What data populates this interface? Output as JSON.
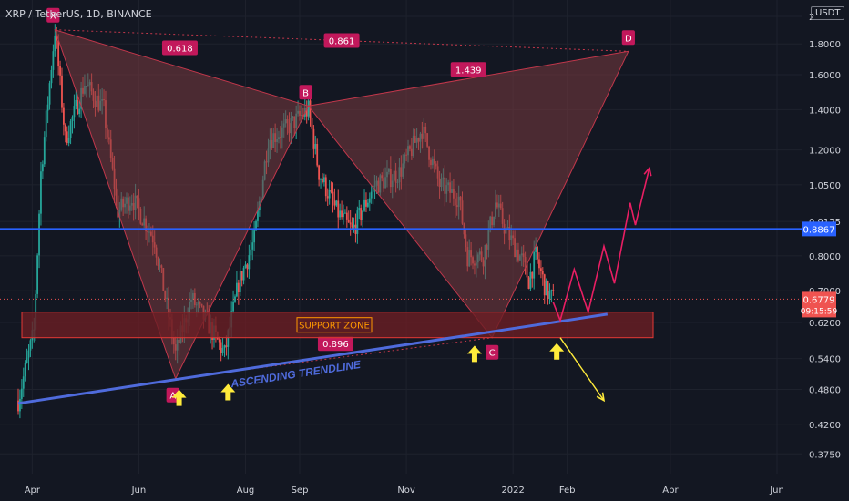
{
  "header": {
    "title": "XRP / TetherUS, 1D, BINANCE",
    "currency": "USDT"
  },
  "colors": {
    "background": "#131722",
    "up": "#26a69a",
    "down": "#ef5350",
    "pattern_fill": "#7a3a3f",
    "pattern_line": "#c2374b",
    "label_bg": "#c2185b",
    "horizontal_line": "#2962ff",
    "trendline": "#4f6bdc",
    "support_fill": "#6b1e24",
    "support_border": "#e53935",
    "support_text": "#ff9800",
    "arrow": "#ffeb3b",
    "projection_up": "#e91e63",
    "projection_down": "#ffeb3b",
    "axis_text": "#d1d4dc"
  },
  "chart_data": {
    "type": "candlestick",
    "title": "XRP / TetherUS, 1D, BINANCE",
    "y_scale": "log",
    "ylim": [
      0.36,
      2.0
    ],
    "y_ticks": [
      "2",
      "1.8000",
      "1.6000",
      "1.4000",
      "1.2000",
      "1.0500",
      "0.9125",
      "0.8000",
      "0.7000",
      "0.6200",
      "0.5400",
      "0.4800",
      "0.4200",
      "0.3750"
    ],
    "x_ticks": [
      "Apr",
      "Jun",
      "Aug",
      "Sep",
      "Nov",
      "2022",
      "Feb",
      "Apr",
      "Jun"
    ],
    "price_key_points": [
      {
        "date": "2021-03-24",
        "price": 0.46
      },
      {
        "date": "2021-04-02",
        "price": 0.6
      },
      {
        "date": "2021-04-06",
        "price": 1.1
      },
      {
        "date": "2021-04-14",
        "price": 1.9
      },
      {
        "date": "2021-04-20",
        "price": 1.25
      },
      {
        "date": "2021-05-01",
        "price": 1.55
      },
      {
        "date": "2021-05-12",
        "price": 1.4
      },
      {
        "date": "2021-05-20",
        "price": 0.95
      },
      {
        "date": "2021-05-28",
        "price": 1.0
      },
      {
        "date": "2021-06-10",
        "price": 0.85
      },
      {
        "date": "2021-06-22",
        "price": 0.55
      },
      {
        "date": "2021-07-01",
        "price": 0.68
      },
      {
        "date": "2021-07-10",
        "price": 0.62
      },
      {
        "date": "2021-07-20",
        "price": 0.55
      },
      {
        "date": "2021-07-28",
        "price": 0.72
      },
      {
        "date": "2021-08-06",
        "price": 0.85
      },
      {
        "date": "2021-08-14",
        "price": 1.25
      },
      {
        "date": "2021-08-24",
        "price": 1.3
      },
      {
        "date": "2021-09-06",
        "price": 1.4
      },
      {
        "date": "2021-09-12",
        "price": 1.1
      },
      {
        "date": "2021-09-22",
        "price": 0.95
      },
      {
        "date": "2021-10-01",
        "price": 0.88
      },
      {
        "date": "2021-10-14",
        "price": 1.05
      },
      {
        "date": "2021-10-28",
        "price": 1.1
      },
      {
        "date": "2021-11-10",
        "price": 1.3
      },
      {
        "date": "2021-11-20",
        "price": 1.05
      },
      {
        "date": "2021-12-01",
        "price": 1.0
      },
      {
        "date": "2021-12-06",
        "price": 0.8
      },
      {
        "date": "2021-12-15",
        "price": 0.8
      },
      {
        "date": "2021-12-22",
        "price": 0.98
      },
      {
        "date": "2021-12-28",
        "price": 0.88
      },
      {
        "date": "2022-01-06",
        "price": 0.79
      },
      {
        "date": "2022-01-10",
        "price": 0.73
      },
      {
        "date": "2022-01-14",
        "price": 0.8
      },
      {
        "date": "2022-01-20",
        "price": 0.7
      },
      {
        "date": "2022-01-24",
        "price": 0.6779
      }
    ],
    "pattern": {
      "points": [
        {
          "label": "X",
          "date": "2021-04-14",
          "price": 1.9
        },
        {
          "label": "A",
          "date": "2021-06-22",
          "price": 0.5
        },
        {
          "label": "B",
          "date": "2021-09-06",
          "price": 1.42
        },
        {
          "label": "C",
          "date": "2021-12-20",
          "price": 0.585
        },
        {
          "label": "D",
          "date": "2022-03-08",
          "price": 1.75
        }
      ],
      "ratios": [
        {
          "value": "0.618",
          "between": "XA-B"
        },
        {
          "value": "0.861",
          "between": "XD"
        },
        {
          "value": "1.439",
          "between": "BC-D"
        },
        {
          "value": "0.896",
          "between": "AC"
        }
      ]
    },
    "horizontal_line": {
      "price": 0.8867,
      "label": "0.8867"
    },
    "support_zone": {
      "label": "SUPPORT ZONE",
      "top": 0.645,
      "bottom": 0.585
    },
    "trendline": {
      "label": "ASCENDING TRENDLINE",
      "start": {
        "date": "2021-03-24",
        "price": 0.455
      },
      "end": {
        "date": "2022-02-24",
        "price": 0.64
      }
    },
    "current_price": {
      "value": "0.6779",
      "countdown": "09:15:59"
    },
    "projection_up": [
      {
        "date": "2022-01-24",
        "price": 0.67
      },
      {
        "date": "2022-01-28",
        "price": 0.625
      },
      {
        "date": "2022-02-05",
        "price": 0.76
      },
      {
        "date": "2022-02-13",
        "price": 0.645
      },
      {
        "date": "2022-02-22",
        "price": 0.83
      },
      {
        "date": "2022-02-28",
        "price": 0.72
      },
      {
        "date": "2022-03-09",
        "price": 0.98
      },
      {
        "date": "2022-03-12",
        "price": 0.9
      },
      {
        "date": "2022-03-20",
        "price": 1.12
      }
    ],
    "projection_down": [
      {
        "date": "2022-01-28",
        "price": 0.585
      },
      {
        "date": "2022-02-22",
        "price": 0.46
      }
    ],
    "arrows": [
      {
        "date": "2021-06-24",
        "price": 0.465
      },
      {
        "date": "2021-07-22",
        "price": 0.475
      },
      {
        "date": "2021-12-10",
        "price": 0.55
      },
      {
        "date": "2022-01-26",
        "price": 0.555
      }
    ]
  }
}
